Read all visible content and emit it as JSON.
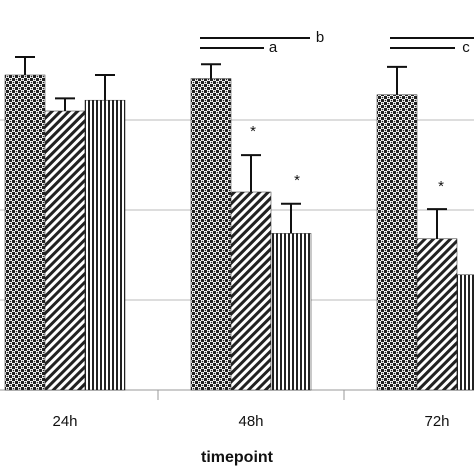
{
  "chart_data": {
    "type": "bar",
    "x_label": "timepoint",
    "categories": [
      "24h",
      "48h",
      "72h"
    ],
    "series": [
      {
        "color": "#222222",
        "pattern": "checker",
        "values": [
          3.5,
          3.46,
          3.28
        ],
        "errors": [
          0.2,
          0.16,
          0.31
        ]
      },
      {
        "color": "#222222",
        "pattern": "diagonal",
        "values": [
          3.1,
          2.2,
          1.68
        ],
        "errors": [
          0.14,
          0.41,
          0.33
        ]
      },
      {
        "color": "#222222",
        "pattern": "vertical",
        "values": [
          3.22,
          1.74,
          1.28
        ],
        "errors": [
          0.28,
          0.33,
          null
        ]
      }
    ],
    "ylim": [
      0,
      4.3
    ],
    "yticks": [
      1,
      2,
      3
    ],
    "grid": true,
    "annotations": [
      "*",
      "*",
      "*",
      "b",
      "a",
      "c"
    ]
  }
}
